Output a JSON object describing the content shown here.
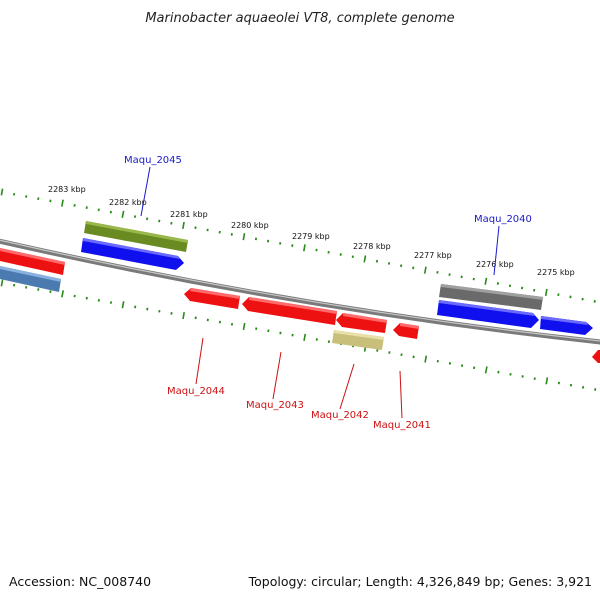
{
  "title": "Marinobacter aquaeolei VT8, complete genome",
  "footer": {
    "accession": "Accession: NC_008740",
    "summary": "Topology: circular; Length: 4,326,849 bp; Genes: 3,921"
  },
  "scale_labels": [
    "2283 kbp",
    "2282 kbp",
    "2281 kbp",
    "2280 kbp",
    "2279 kbp",
    "2278 kbp",
    "2277 kbp",
    "2276 kbp",
    "2275 kbp"
  ],
  "gene_labels": [
    {
      "name": "Maqu_2045",
      "color": "#1a1acc"
    },
    {
      "name": "Maqu_2040",
      "color": "#1a1acc"
    },
    {
      "name": "Maqu_2044",
      "color": "#cc1111"
    },
    {
      "name": "Maqu_2043",
      "color": "#cc1111"
    },
    {
      "name": "Maqu_2042",
      "color": "#cc1111"
    },
    {
      "name": "Maqu_2041",
      "color": "#cc1111"
    }
  ],
  "colors": {
    "backbone": "#8a8a8a",
    "tick": "#2a8a1a",
    "forward_cds": "#1010ee",
    "reverse_cds": "#ee1111",
    "olive": "#6a8a22",
    "khaki": "#c8c07a",
    "gray": "#6a6a6a",
    "steelblue": "#4a7ab0"
  }
}
